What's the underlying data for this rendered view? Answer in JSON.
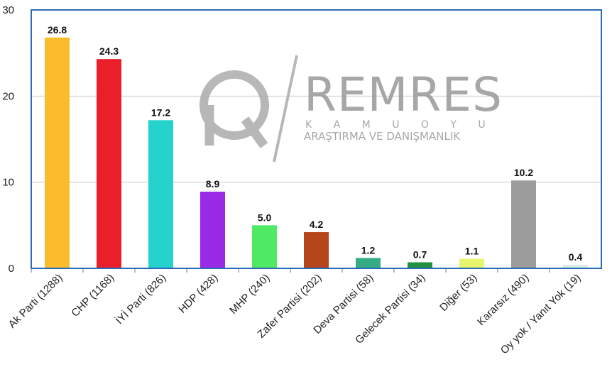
{
  "watermark": {
    "brand": "REMRES",
    "line1": "K A M U O Y U",
    "line2": "ARAŞTIRMA VE DANIŞMANLIK"
  },
  "chart_data": {
    "type": "bar",
    "categories": [
      "Ak Parti (1288)",
      "CHP (1168)",
      "İYİ Parti (826)",
      "HDP (428)",
      "MHP (240)",
      "Zafer Partisi (202)",
      "Deva Partisi (58)",
      "Gelecek Partisi (34)",
      "Diğer (53)",
      "Kararsız (490)",
      "Oy yok / Yanıt Yok (19)"
    ],
    "values": [
      26.8,
      24.3,
      17.2,
      8.9,
      5.0,
      4.2,
      1.2,
      0.7,
      1.1,
      10.2,
      0.4
    ],
    "value_labels": [
      "26.8",
      "24.3",
      "17.2",
      "8.9",
      "5.0",
      "4.2",
      "1.2",
      "0.7",
      "1.1",
      "10.2",
      "0.4"
    ],
    "colors": [
      "#fbbc2c",
      "#eb1f2a",
      "#26d3cc",
      "#9b2ae7",
      "#4fe964",
      "#b5451b",
      "#35ab85",
      "#22913f",
      "#e7f56d",
      "#9c9c9c",
      "#d8efe2"
    ],
    "yticks": [
      0,
      10,
      20,
      30
    ],
    "ylim": [
      0,
      30
    ],
    "grid": true,
    "legend": "none",
    "title": "",
    "xlabel": "",
    "ylabel": ""
  }
}
